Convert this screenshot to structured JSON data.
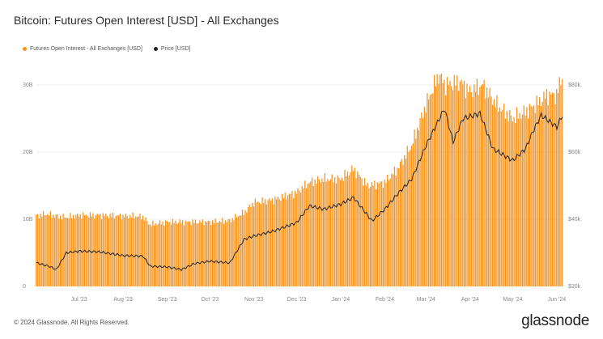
{
  "title": "Bitcoin: Futures Open Interest [USD] - All Exchanges",
  "footer": "© 2024 Glassnode. All Rights Reserved.",
  "brand": "glassnode",
  "colors": {
    "bars": "#F7931A",
    "price": "#222222"
  },
  "chart_data": {
    "type": "bar",
    "title": "Bitcoin: Futures Open Interest [USD] - All Exchanges",
    "legend": "top-left",
    "series": [
      {
        "name": "Futures Open Interest - All Exchanges [USD]",
        "type": "bar",
        "axis": "left",
        "unit": "USD",
        "anchors": [
          [
            "2023-06-01",
            10500000000.0
          ],
          [
            "2023-06-08",
            10800000000.0
          ],
          [
            "2023-06-15",
            10500000000.0
          ],
          [
            "2023-06-22",
            10300000000.0
          ],
          [
            "2023-07-01",
            10600000000.0
          ],
          [
            "2023-07-15",
            10600000000.0
          ],
          [
            "2023-08-01",
            10500000000.0
          ],
          [
            "2023-08-15",
            10400000000.0
          ],
          [
            "2023-08-20",
            9200000000.0
          ],
          [
            "2023-09-01",
            9600000000.0
          ],
          [
            "2023-09-15",
            9600000000.0
          ],
          [
            "2023-10-01",
            9600000000.0
          ],
          [
            "2023-10-15",
            9800000000.0
          ],
          [
            "2023-10-25",
            11000000000.0
          ],
          [
            "2023-11-01",
            12500000000.0
          ],
          [
            "2023-11-15",
            12900000000.0
          ],
          [
            "2023-12-01",
            14000000000.0
          ],
          [
            "2023-12-10",
            15500000000.0
          ],
          [
            "2023-12-20",
            16000000000.0
          ],
          [
            "2024-01-01",
            16000000000.0
          ],
          [
            "2024-01-10",
            17500000000.0
          ],
          [
            "2024-01-20",
            15000000000.0
          ],
          [
            "2024-02-01",
            15500000000.0
          ],
          [
            "2024-02-10",
            17500000000.0
          ],
          [
            "2024-02-20",
            21000000000.0
          ],
          [
            "2024-03-01",
            27000000000.0
          ],
          [
            "2024-03-10",
            31500000000.0
          ],
          [
            "2024-03-15",
            30000000000.0
          ],
          [
            "2024-03-25",
            30500000000.0
          ],
          [
            "2024-04-01",
            29000000000.0
          ],
          [
            "2024-04-10",
            30000000000.0
          ],
          [
            "2024-04-20",
            27000000000.0
          ],
          [
            "2024-05-01",
            25000000000.0
          ],
          [
            "2024-05-10",
            26000000000.0
          ],
          [
            "2024-05-20",
            27500000000.0
          ],
          [
            "2024-05-25",
            28500000000.0
          ],
          [
            "2024-06-01",
            28500000000.0
          ],
          [
            "2024-06-05",
            31500000000.0
          ]
        ]
      },
      {
        "name": "Price [USD]",
        "type": "line",
        "axis": "right",
        "unit": "USD",
        "anchors": [
          [
            "2023-06-01",
            27000
          ],
          [
            "2023-06-10",
            26000
          ],
          [
            "2023-06-15",
            25000
          ],
          [
            "2023-06-22",
            30000
          ],
          [
            "2023-07-01",
            30500
          ],
          [
            "2023-07-15",
            30300
          ],
          [
            "2023-08-01",
            29200
          ],
          [
            "2023-08-15",
            29000
          ],
          [
            "2023-08-20",
            26000
          ],
          [
            "2023-09-01",
            25800
          ],
          [
            "2023-09-11",
            25000
          ],
          [
            "2023-09-20",
            26800
          ],
          [
            "2023-10-01",
            27500
          ],
          [
            "2023-10-15",
            27000
          ],
          [
            "2023-10-25",
            34000
          ],
          [
            "2023-11-01",
            35000
          ],
          [
            "2023-11-15",
            36500
          ],
          [
            "2023-12-01",
            39000
          ],
          [
            "2023-12-10",
            44000
          ],
          [
            "2023-12-20",
            43000
          ],
          [
            "2024-01-01",
            44500
          ],
          [
            "2024-01-10",
            46500
          ],
          [
            "2024-01-23",
            39500
          ],
          [
            "2024-02-01",
            43000
          ],
          [
            "2024-02-10",
            47500
          ],
          [
            "2024-02-20",
            52000
          ],
          [
            "2024-03-01",
            62000
          ],
          [
            "2024-03-14",
            73000
          ],
          [
            "2024-03-20",
            63000
          ],
          [
            "2024-03-27",
            70000
          ],
          [
            "2024-04-08",
            71500
          ],
          [
            "2024-04-17",
            61000
          ],
          [
            "2024-05-01",
            57500
          ],
          [
            "2024-05-10",
            61000
          ],
          [
            "2024-05-15",
            66000
          ],
          [
            "2024-05-21",
            71000
          ],
          [
            "2024-06-01",
            67500
          ],
          [
            "2024-06-05",
            71000
          ]
        ]
      }
    ],
    "x_range": [
      "2023-06-01",
      "2024-06-05"
    ],
    "x_ticks": [
      "Jul '23",
      "Aug '23",
      "Sep '23",
      "Oct '23",
      "Nov '23",
      "Dec '23",
      "Jan '24",
      "Feb '24",
      "Mar '24",
      "Apr '24",
      "May '24",
      "Jun '24"
    ],
    "x_tick_dates": [
      "2023-07-01",
      "2023-08-01",
      "2023-09-01",
      "2023-10-01",
      "2023-11-01",
      "2023-12-01",
      "2024-01-01",
      "2024-02-01",
      "2024-03-01",
      "2024-04-01",
      "2024-05-01",
      "2024-06-01"
    ],
    "y_left": {
      "ticks": [
        "0",
        "10B",
        "20B",
        "30B"
      ],
      "values": [
        0,
        10000000000.0,
        20000000000.0,
        30000000000.0
      ],
      "range": [
        0,
        30000000000.0
      ]
    },
    "y_right": {
      "ticks": [
        "$20k",
        "$40k",
        "$60k",
        "$80k"
      ],
      "values": [
        20000,
        40000,
        60000,
        80000
      ],
      "range": [
        20000,
        80000
      ]
    },
    "grid": true
  }
}
